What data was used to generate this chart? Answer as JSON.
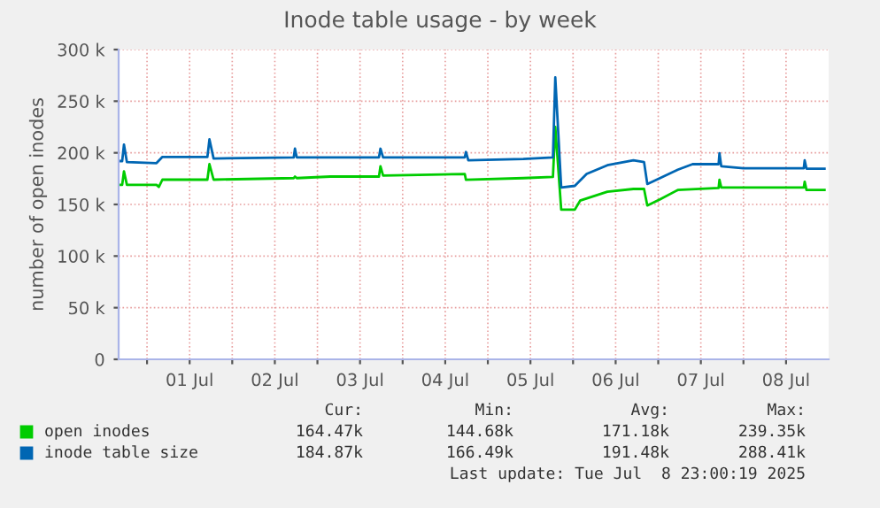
{
  "chart_data": {
    "type": "line",
    "title": "Inode table usage - by week",
    "ylabel": "number of open inodes",
    "xlim": [
      "2025-06-30T16:00",
      "2025-07-09T00:00"
    ],
    "xticks": [
      {
        "value": "2025-07-01T00:00",
        "label": null
      },
      {
        "value": "2025-07-01T12:00",
        "label": "01 Jul"
      },
      {
        "value": "2025-07-02T00:00",
        "label": null
      },
      {
        "value": "2025-07-02T12:00",
        "label": "02 Jul"
      },
      {
        "value": "2025-07-03T00:00",
        "label": null
      },
      {
        "value": "2025-07-03T12:00",
        "label": "03 Jul"
      },
      {
        "value": "2025-07-04T00:00",
        "label": null
      },
      {
        "value": "2025-07-04T12:00",
        "label": "04 Jul"
      },
      {
        "value": "2025-07-05T00:00",
        "label": null
      },
      {
        "value": "2025-07-05T12:00",
        "label": "05 Jul"
      },
      {
        "value": "2025-07-06T00:00",
        "label": null
      },
      {
        "value": "2025-07-06T12:00",
        "label": "06 Jul"
      },
      {
        "value": "2025-07-07T00:00",
        "label": null
      },
      {
        "value": "2025-07-07T12:00",
        "label": "07 Jul"
      },
      {
        "value": "2025-07-08T00:00",
        "label": null
      },
      {
        "value": "2025-07-08T12:00",
        "label": "08 Jul"
      }
    ],
    "ylim": [
      0,
      300000
    ],
    "yticks": [
      {
        "value": 0,
        "label": "0"
      },
      {
        "value": 50000,
        "label": "50 k"
      },
      {
        "value": 100000,
        "label": "100 k"
      },
      {
        "value": 150000,
        "label": "150 k"
      },
      {
        "value": 200000,
        "label": "200 k"
      },
      {
        "value": 250000,
        "label": "250 k"
      },
      {
        "value": 300000,
        "label": "300 k"
      }
    ],
    "grid": true,
    "legend": "bottom",
    "series": [
      {
        "name": "open inodes",
        "color": "#00cc00",
        "x": [
          "2025-06-30T16:00",
          "2025-06-30T17:00",
          "2025-06-30T17:30",
          "2025-06-30T18:20",
          "2025-07-01T02:40",
          "2025-07-01T03:20",
          "2025-07-01T04:20",
          "2025-07-01T17:00",
          "2025-07-01T17:35",
          "2025-07-01T18:45",
          "2025-07-02T17:20",
          "2025-07-02T17:40",
          "2025-07-02T18:10",
          "2025-07-03T03:40",
          "2025-07-03T17:20",
          "2025-07-03T17:45",
          "2025-07-03T18:30",
          "2025-07-04T11:10",
          "2025-07-04T17:30",
          "2025-07-04T17:50",
          "2025-07-05T10:00",
          "2025-07-05T18:20",
          "2025-07-05T19:00",
          "2025-07-05T20:40",
          "2025-07-06T00:30",
          "2025-07-06T02:00",
          "2025-07-06T09:40",
          "2025-07-06T17:00",
          "2025-07-06T20:00",
          "2025-07-06T20:55",
          "2025-07-07T00:30",
          "2025-07-07T05:30",
          "2025-07-07T17:00",
          "2025-07-07T17:15",
          "2025-07-07T17:45",
          "2025-07-08T17:00",
          "2025-07-08T17:15",
          "2025-07-08T17:45",
          "2025-07-08T22:50"
        ],
        "values": [
          169000,
          169000,
          182000,
          169000,
          169000,
          167000,
          174000,
          174000,
          189000,
          174000,
          175500,
          177000,
          175500,
          177000,
          177000,
          187000,
          178000,
          179000,
          179500,
          173800,
          175500,
          176700,
          225000,
          145000,
          145000,
          153700,
          162300,
          165000,
          165000,
          149000,
          155000,
          164000,
          166000,
          173800,
          166400,
          166400,
          172000,
          164000,
          164000
        ]
      },
      {
        "name": "inode table size",
        "color": "#0066b3",
        "x": [
          "2025-06-30T16:00",
          "2025-06-30T17:00",
          "2025-06-30T17:30",
          "2025-06-30T18:20",
          "2025-07-01T02:40",
          "2025-07-01T04:20",
          "2025-07-01T17:00",
          "2025-07-01T17:35",
          "2025-07-01T18:45",
          "2025-07-02T17:20",
          "2025-07-02T17:40",
          "2025-07-02T18:10",
          "2025-07-03T17:20",
          "2025-07-03T17:45",
          "2025-07-03T18:30",
          "2025-07-04T17:30",
          "2025-07-04T17:50",
          "2025-07-04T18:30",
          "2025-07-05T10:00",
          "2025-07-05T18:20",
          "2025-07-05T19:00",
          "2025-07-05T20:40",
          "2025-07-06T00:30",
          "2025-07-06T03:50",
          "2025-07-06T09:40",
          "2025-07-06T17:00",
          "2025-07-06T20:00",
          "2025-07-06T20:55",
          "2025-07-07T00:30",
          "2025-07-07T05:30",
          "2025-07-07T09:40",
          "2025-07-07T17:00",
          "2025-07-07T17:15",
          "2025-07-07T17:45",
          "2025-07-08T00:00",
          "2025-07-08T17:00",
          "2025-07-08T17:15",
          "2025-07-08T17:45",
          "2025-07-08T22:50"
        ],
        "values": [
          192000,
          192000,
          208000,
          191000,
          190000,
          196000,
          196000,
          213000,
          194500,
          195600,
          204000,
          195600,
          195600,
          204000,
          195600,
          195600,
          200800,
          192700,
          194000,
          195600,
          273000,
          166400,
          168000,
          179500,
          188000,
          192700,
          191000,
          169800,
          175500,
          183600,
          189000,
          189000,
          199600,
          187000,
          185000,
          185000,
          192700,
          184700,
          184700
        ]
      }
    ],
    "annotations": [
      "Cur:",
      "Min:",
      "Avg:",
      "Max:",
      "164.47k",
      "144.68k",
      "171.18k",
      "239.35k",
      "184.87k",
      "166.49k",
      "191.48k",
      "288.41k",
      "Last update: Tue Jul  8 23:00:19 2025"
    ]
  }
}
